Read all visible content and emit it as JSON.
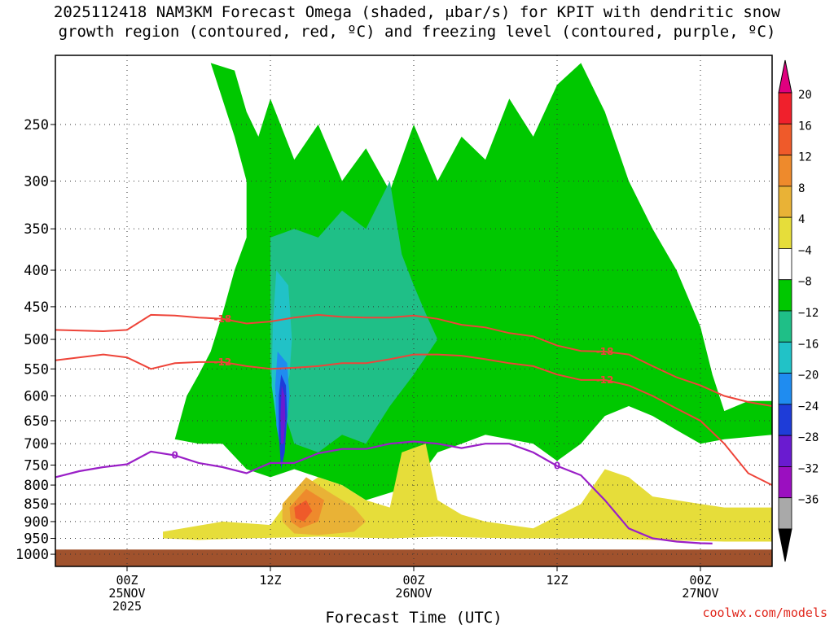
{
  "title": {
    "line1": "2025112418 NAM3KM Forecast Omega (shaded, μbar/s) for KPIT with dendritic snow",
    "line2": "growth region (contoured, red, ºC) and freezing level (contoured, purple, ºC)"
  },
  "credit": {
    "text": "coolwx.com/models",
    "color": "#e0261b"
  },
  "chart_data": {
    "type": "heatmap",
    "xlabel": "Forecast Time (UTC)",
    "x_ticks": [
      {
        "hour": 6,
        "line1": "00Z",
        "line2": "25NOV",
        "line3": "2025"
      },
      {
        "hour": 18,
        "line1": "12Z",
        "line2": "",
        "line3": ""
      },
      {
        "hour": 30,
        "line1": "00Z",
        "line2": "26NOV",
        "line3": ""
      },
      {
        "hour": 42,
        "line1": "12Z",
        "line2": "",
        "line3": ""
      },
      {
        "hour": 54,
        "line1": "00Z",
        "line2": "27NOV",
        "line3": ""
      }
    ],
    "x_range_hours": [
      0,
      60
    ],
    "y_ticks": [
      250,
      300,
      350,
      400,
      450,
      500,
      550,
      600,
      650,
      700,
      750,
      800,
      850,
      900,
      950,
      1000
    ],
    "y_range_hPa": [
      200,
      1000
    ],
    "y_scale": "log, inverted (pressure)",
    "grid": true,
    "colorbar": {
      "levels": [
        "20",
        "16",
        "12",
        "8",
        "4",
        "−4",
        "−8",
        "−12",
        "−16",
        "−20",
        "−24",
        "−28",
        "−32",
        "−36"
      ],
      "colors": [
        "#f0202c",
        "#ef5a2a",
        "#ee8a2c",
        "#e9b236",
        "#e6dd3a",
        "#ffffff",
        "#00c800",
        "#1fbf87",
        "#21c2c7",
        "#1f8cf0",
        "#1e3cd8",
        "#6a1bd0",
        "#9b0fc0",
        "#a9a9a9"
      ],
      "top_arrow_color": "#e0007f",
      "bottom_arrow_color": "#000000"
    },
    "contours": {
      "dendritic_snow_growth_lines": [
        {
          "label": "-18",
          "color": "#ee4439",
          "points": [
            [
              0,
              485
            ],
            [
              4,
              487
            ],
            [
              6,
              485
            ],
            [
              8,
              462
            ],
            [
              10,
              463
            ],
            [
              12,
              466
            ],
            [
              14,
              468
            ],
            [
              16,
              475
            ],
            [
              18,
              472
            ],
            [
              20,
              466
            ],
            [
              22,
              462
            ],
            [
              24,
              465
            ],
            [
              26,
              466
            ],
            [
              28,
              466
            ],
            [
              30,
              463
            ],
            [
              32,
              468
            ],
            [
              34,
              477
            ],
            [
              36,
              481
            ],
            [
              38,
              490
            ],
            [
              40,
              495
            ],
            [
              42,
              510
            ],
            [
              44,
              519
            ],
            [
              46,
              520
            ],
            [
              48,
              525
            ],
            [
              50,
              545
            ],
            [
              52,
              565
            ],
            [
              54,
              580
            ],
            [
              56,
              600
            ],
            [
              58,
              612
            ],
            [
              60,
              620
            ]
          ]
        },
        {
          "label": "-12",
          "color": "#ee4439",
          "points": [
            [
              0,
              535
            ],
            [
              4,
              525
            ],
            [
              6,
              530
            ],
            [
              8,
              550
            ],
            [
              10,
              540
            ],
            [
              12,
              538
            ],
            [
              14,
              538
            ],
            [
              16,
              545
            ],
            [
              18,
              550
            ],
            [
              20,
              548
            ],
            [
              22,
              545
            ],
            [
              24,
              540
            ],
            [
              26,
              540
            ],
            [
              28,
              533
            ],
            [
              30,
              525
            ],
            [
              32,
              525
            ],
            [
              34,
              527
            ],
            [
              36,
              533
            ],
            [
              38,
              540
            ],
            [
              40,
              545
            ],
            [
              42,
              560
            ],
            [
              44,
              570
            ],
            [
              46,
              570
            ],
            [
              48,
              580
            ],
            [
              50,
              600
            ],
            [
              52,
              625
            ],
            [
              54,
              650
            ],
            [
              56,
              700
            ],
            [
              58,
              770
            ],
            [
              60,
              800
            ]
          ]
        }
      ],
      "freezing_level": {
        "label": "0",
        "color": "#9a1fc7",
        "points": [
          [
            0,
            780
          ],
          [
            2,
            765
          ],
          [
            4,
            755
          ],
          [
            6,
            748
          ],
          [
            8,
            718
          ],
          [
            10,
            727
          ],
          [
            12,
            745
          ],
          [
            14,
            755
          ],
          [
            16,
            770
          ],
          [
            18,
            745
          ],
          [
            20,
            745
          ],
          [
            22,
            722
          ],
          [
            24,
            712
          ],
          [
            26,
            712
          ],
          [
            28,
            700
          ],
          [
            30,
            695
          ],
          [
            32,
            700
          ],
          [
            34,
            710
          ],
          [
            36,
            700
          ],
          [
            38,
            700
          ],
          [
            40,
            720
          ],
          [
            42,
            752
          ],
          [
            44,
            775
          ],
          [
            46,
            840
          ],
          [
            48,
            920
          ],
          [
            50,
            950
          ],
          [
            52,
            960
          ],
          [
            54,
            965
          ],
          [
            55,
            966
          ]
        ]
      }
    },
    "shaded_regions": [
      {
        "category": "−4",
        "color": "#00c800",
        "points": [
          [
            13,
            205
          ],
          [
            15,
            210
          ],
          [
            16,
            240
          ],
          [
            17,
            260
          ],
          [
            18,
            230
          ],
          [
            20,
            280
          ],
          [
            22,
            250
          ],
          [
            24,
            300
          ],
          [
            26,
            270
          ],
          [
            28,
            310
          ],
          [
            30,
            250
          ],
          [
            32,
            300
          ],
          [
            34,
            260
          ],
          [
            36,
            280
          ],
          [
            38,
            230
          ],
          [
            40,
            260
          ],
          [
            42,
            220
          ],
          [
            44,
            205
          ],
          [
            46,
            240
          ],
          [
            48,
            300
          ],
          [
            50,
            350
          ],
          [
            52,
            400
          ],
          [
            54,
            480
          ],
          [
            55,
            560
          ],
          [
            56,
            630
          ],
          [
            58,
            610
          ],
          [
            60,
            610
          ],
          [
            60,
            680
          ],
          [
            56,
            690
          ],
          [
            54,
            700
          ],
          [
            52,
            670
          ],
          [
            50,
            640
          ],
          [
            48,
            620
          ],
          [
            46,
            640
          ],
          [
            44,
            700
          ],
          [
            42,
            740
          ],
          [
            40,
            700
          ],
          [
            38,
            690
          ],
          [
            36,
            680
          ],
          [
            34,
            700
          ],
          [
            32,
            720
          ],
          [
            30,
            800
          ],
          [
            28,
            820
          ],
          [
            26,
            840
          ],
          [
            24,
            800
          ],
          [
            22,
            780
          ],
          [
            20,
            760
          ],
          [
            18,
            780
          ],
          [
            16,
            760
          ],
          [
            14,
            700
          ],
          [
            12,
            700
          ],
          [
            10,
            690
          ],
          [
            11,
            600
          ],
          [
            12,
            560
          ],
          [
            13,
            520
          ],
          [
            14,
            460
          ],
          [
            15,
            400
          ],
          [
            16,
            360
          ],
          [
            16,
            300
          ],
          [
            15,
            260
          ]
        ]
      },
      {
        "category": "−8",
        "color": "#1fbf87",
        "points": [
          [
            18,
            360
          ],
          [
            20,
            350
          ],
          [
            22,
            360
          ],
          [
            24,
            330
          ],
          [
            26,
            350
          ],
          [
            28,
            300
          ],
          [
            29,
            380
          ],
          [
            30,
            420
          ],
          [
            31,
            460
          ],
          [
            32,
            500
          ],
          [
            30,
            560
          ],
          [
            28,
            620
          ],
          [
            26,
            700
          ],
          [
            24,
            680
          ],
          [
            22,
            720
          ],
          [
            20,
            700
          ],
          [
            19,
            620
          ],
          [
            18,
            560
          ],
          [
            18,
            480
          ]
        ]
      },
      {
        "category": "−16",
        "color": "#21c2c7",
        "points": [
          [
            18.5,
            400
          ],
          [
            19.5,
            420
          ],
          [
            19.8,
            500
          ],
          [
            19.6,
            560
          ],
          [
            19,
            620
          ],
          [
            18.5,
            650
          ],
          [
            18.1,
            580
          ],
          [
            18.2,
            480
          ]
        ]
      },
      {
        "category": "−20",
        "color": "#1f8cf0",
        "points": [
          [
            18.6,
            520
          ],
          [
            19.4,
            540
          ],
          [
            19.6,
            600
          ],
          [
            19.3,
            680
          ],
          [
            18.9,
            720
          ],
          [
            18.5,
            660
          ],
          [
            18.4,
            580
          ]
        ]
      },
      {
        "category": "−24",
        "color": "#1e3cd8",
        "points": [
          [
            18.9,
            560
          ],
          [
            19.3,
            580
          ],
          [
            19.4,
            640
          ],
          [
            19.2,
            720
          ],
          [
            18.9,
            760
          ],
          [
            18.7,
            680
          ],
          [
            18.7,
            600
          ]
        ]
      },
      {
        "category": "−28",
        "color": "#6a1bd0",
        "points": [
          [
            18.95,
            580
          ],
          [
            19.2,
            600
          ],
          [
            19.25,
            650
          ],
          [
            19.1,
            700
          ],
          [
            18.9,
            700
          ],
          [
            18.85,
            640
          ]
        ]
      },
      {
        "category": "4",
        "color": "#e6dd3a",
        "points": [
          [
            9,
            930
          ],
          [
            14,
            900
          ],
          [
            18,
            910
          ],
          [
            20,
            820
          ],
          [
            22,
            780
          ],
          [
            24,
            800
          ],
          [
            26,
            840
          ],
          [
            28,
            860
          ],
          [
            29,
            720
          ],
          [
            31,
            700
          ],
          [
            32,
            840
          ],
          [
            34,
            880
          ],
          [
            36,
            900
          ],
          [
            40,
            920
          ],
          [
            44,
            850
          ],
          [
            46,
            760
          ],
          [
            48,
            780
          ],
          [
            50,
            830
          ],
          [
            54,
            850
          ],
          [
            56,
            860
          ],
          [
            60,
            860
          ],
          [
            60,
            960
          ],
          [
            56,
            960
          ],
          [
            50,
            955
          ],
          [
            44,
            950
          ],
          [
            38,
            950
          ],
          [
            32,
            945
          ],
          [
            28,
            950
          ],
          [
            22,
            945
          ],
          [
            16,
            950
          ],
          [
            12,
            955
          ],
          [
            9,
            950
          ]
        ]
      },
      {
        "category": "8",
        "color": "#e9b236",
        "points": [
          [
            19,
            850
          ],
          [
            21,
            780
          ],
          [
            23,
            820
          ],
          [
            25,
            860
          ],
          [
            26,
            900
          ],
          [
            25,
            930
          ],
          [
            22,
            940
          ],
          [
            20,
            935
          ],
          [
            19,
            900
          ]
        ]
      },
      {
        "category": "12",
        "color": "#ee8a2c",
        "points": [
          [
            19.6,
            860
          ],
          [
            21,
            810
          ],
          [
            22.5,
            840
          ],
          [
            22,
            900
          ],
          [
            20.5,
            920
          ],
          [
            19.7,
            900
          ]
        ]
      },
      {
        "category": "16",
        "color": "#ef5a2a",
        "points": [
          [
            20,
            860
          ],
          [
            21,
            840
          ],
          [
            21.5,
            870
          ],
          [
            20.8,
            900
          ],
          [
            20.1,
            890
          ]
        ]
      }
    ]
  }
}
